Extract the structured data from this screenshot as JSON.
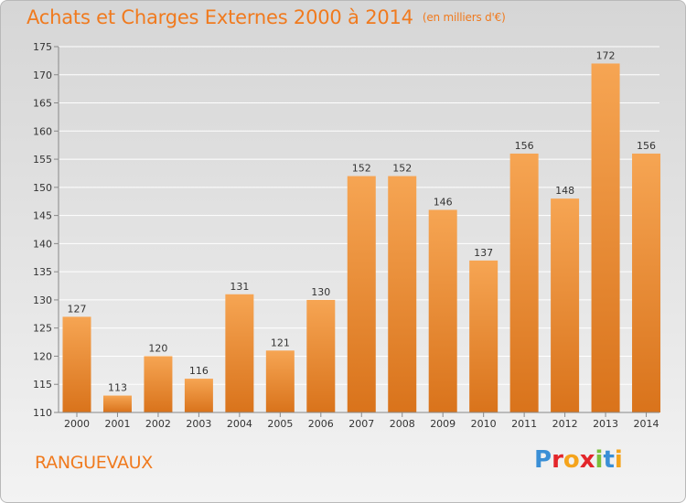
{
  "title": "Achats et Charges Externes 2000 à 2014",
  "unit_note": "(en milliers d'€)",
  "town": "RANGUEVAUX",
  "logo": {
    "text": "Proxiti",
    "letters": [
      {
        "ch": "P",
        "color": "#3a8fd6"
      },
      {
        "ch": "r",
        "color": "#e3262b"
      },
      {
        "ch": "o",
        "color": "#f5a41c"
      },
      {
        "ch": "x",
        "color": "#e3262b"
      },
      {
        "ch": "i",
        "color": "#7bbf3a"
      },
      {
        "ch": "t",
        "color": "#3a8fd6"
      },
      {
        "ch": "i",
        "color": "#f5a41c"
      }
    ]
  },
  "colors": {
    "bar_light": "#f6a553",
    "bar_dark": "#d9731b",
    "accent": "#f07a1e"
  },
  "chart_data": {
    "type": "bar",
    "categories": [
      "2000",
      "2001",
      "2002",
      "2003",
      "2004",
      "2005",
      "2006",
      "2007",
      "2008",
      "2009",
      "2010",
      "2011",
      "2012",
      "2013",
      "2014"
    ],
    "values": [
      127,
      113,
      120,
      116,
      131,
      121,
      130,
      152,
      152,
      146,
      137,
      156,
      148,
      172,
      156
    ],
    "ylim": [
      110,
      175
    ],
    "yticks": [
      110,
      115,
      120,
      125,
      130,
      135,
      140,
      145,
      150,
      155,
      160,
      165,
      170,
      175
    ],
    "grid": true
  }
}
